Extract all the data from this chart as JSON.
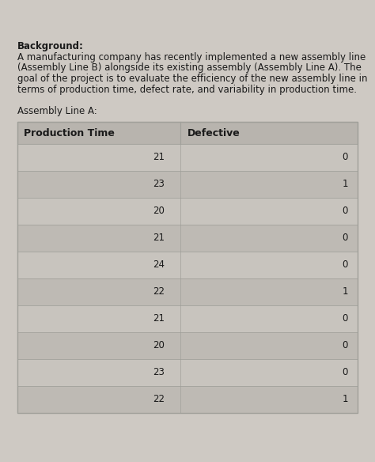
{
  "page_background": "#cec9c3",
  "title_text": "Background:",
  "body_text": "A manufacturing company has recently implemented a new assembly line\n(Assembly Line B) alongside its existing assembly (Assembly Line A). The\ngoal of the project is to evaluate the efficiency of the new assembly line in\nterms of production time, defect rate, and variability in production time.",
  "table_label": "Assembly Line A:",
  "col_headers": [
    "Production Time",
    "Defective"
  ],
  "production_times": [
    21,
    23,
    20,
    21,
    24,
    22,
    21,
    20,
    23,
    22
  ],
  "defectives": [
    0,
    1,
    0,
    0,
    0,
    1,
    0,
    0,
    0,
    1
  ],
  "header_bg": "#b8b4ae",
  "row_bg_light": "#c8c4be",
  "row_bg_dark": "#bebab4",
  "text_color": "#1a1a1a",
  "border_color": "#a0a09a",
  "font_size_body": 8.5,
  "font_size_header_col": 9.0,
  "font_size_table": 8.5,
  "fig_width": 4.74,
  "fig_height": 5.84,
  "dpi": 100
}
